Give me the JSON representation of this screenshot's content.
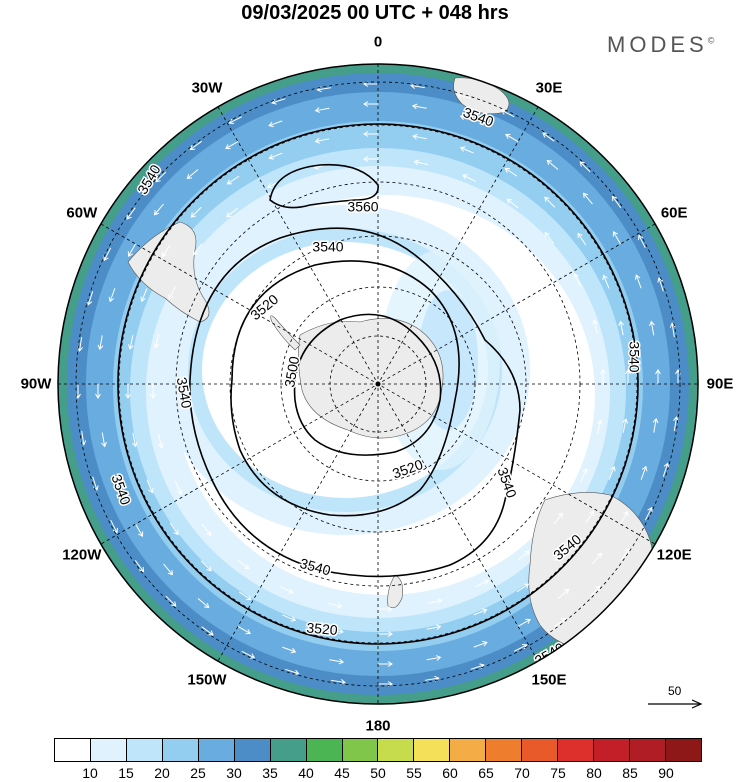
{
  "header": {
    "title": "09/03/2025  00 UTC  + 048 hrs",
    "brand": "MODES",
    "brand_mark": "©"
  },
  "map": {
    "projection": "south polar stereographic",
    "longitude_labels": [
      "0",
      "30E",
      "60E",
      "90E",
      "120E",
      "150E",
      "180",
      "150W",
      "120W",
      "90W",
      "60W",
      "30W"
    ],
    "contour_labels": [
      "3540",
      "3540",
      "3560",
      "3540",
      "3520",
      "3500",
      "3540",
      "3540",
      "3520",
      "3540",
      "3540",
      "3540",
      "3540",
      "3520",
      "3540"
    ],
    "colors": {
      "land": "#ececec",
      "contour": "#000000",
      "grid": "#000000",
      "vectors": "#ffffff"
    }
  },
  "reference_vector": {
    "label": "50"
  },
  "colorbar": {
    "labels": [
      "10",
      "15",
      "20",
      "25",
      "30",
      "35",
      "40",
      "45",
      "50",
      "55",
      "60",
      "65",
      "70",
      "75",
      "80",
      "85",
      "90"
    ],
    "colors": [
      "#ffffff",
      "#dff2fd",
      "#bfe5fb",
      "#93cdf0",
      "#69acdf",
      "#4c8dc8",
      "#449e8a",
      "#4bb553",
      "#7fc64b",
      "#c6dc4d",
      "#f5e05a",
      "#f4ad46",
      "#ef7d2e",
      "#e95a2a",
      "#dd2f2b",
      "#c21f28",
      "#b01d24",
      "#8e1817"
    ]
  }
}
